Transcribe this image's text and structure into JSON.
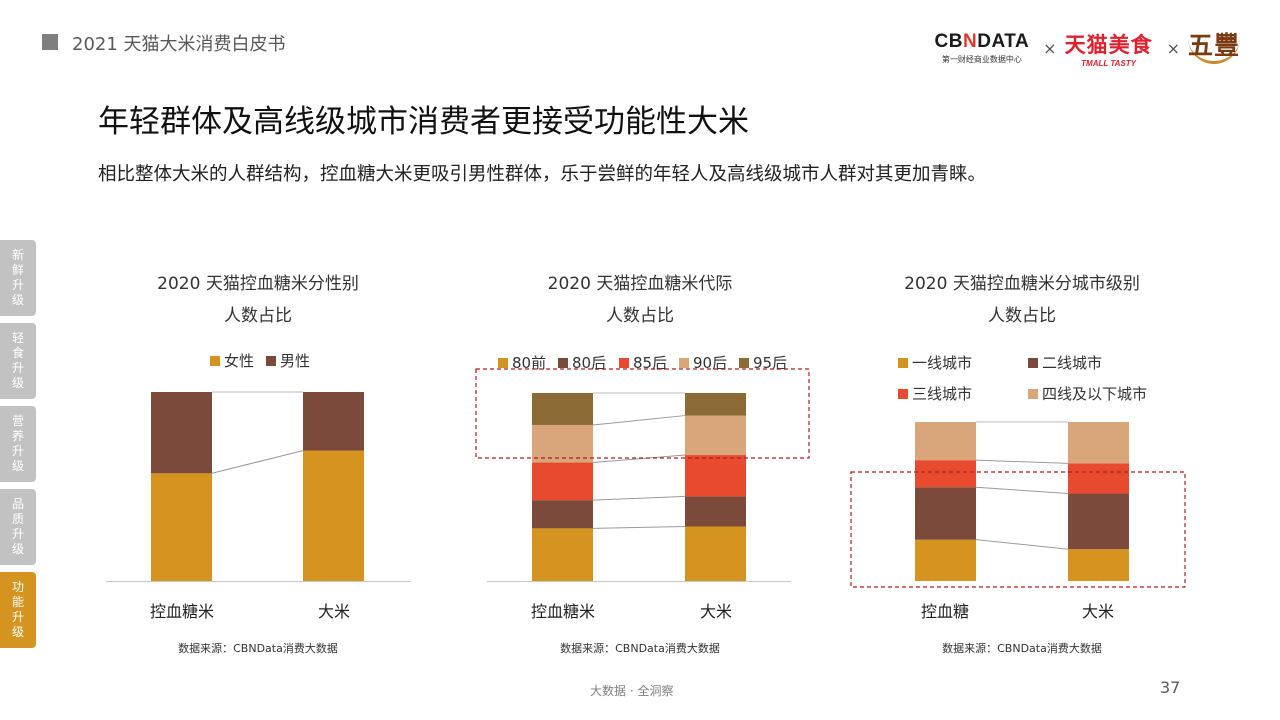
{
  "doc_title": "2021 天猫大米消费白皮书",
  "logos": {
    "cbn_prefix": "CB",
    "cbn_x": "N",
    "cbn_suffix": "DATA",
    "cbn_sub": "第一财经商业数据中心",
    "tmall": "天猫美食",
    "tmall_sub": "TMALL TASTY",
    "wufeng": "五豐",
    "times": "×"
  },
  "main_title": "年轻群体及高线级城市消费者更接受功能性大米",
  "subtitle": "相比整体大米的人群结构，控血糖大米更吸引男性群体，乐于尝鲜的年轻人及高线级城市人群对其更加青睐。",
  "side_tabs": [
    "新鲜升级",
    "轻食升级",
    "营养升级",
    "品质升级",
    "功能升级"
  ],
  "source_text": "数据来源：CBNData消费大数据",
  "footer_text": "大数据 · 全洞察",
  "page_number": "37",
  "colors": {
    "gold": "#d4941f",
    "brown": "#7b4a3a",
    "red": "#e84a30",
    "tan": "#d9a57b",
    "olive": "#8b6a35",
    "accent_dash": "#b01f1f"
  },
  "chart_data": [
    {
      "type": "bar",
      "stacked": true,
      "normalized": true,
      "title_line1": "2020 天猫控血糖米分性别",
      "title_line2": "人数占比",
      "categories": [
        "控血糖米",
        "大米"
      ],
      "series": [
        {
          "name": "女性",
          "values": [
            57,
            69
          ]
        },
        {
          "name": "男性",
          "values": [
            43,
            31
          ]
        }
      ],
      "ylim": [
        0,
        100
      ],
      "highlight": null
    },
    {
      "type": "bar",
      "stacked": true,
      "normalized": true,
      "title_line1": "2020 天猫控血糖米代际",
      "title_line2": "人数占比",
      "categories": [
        "控血糖米",
        "大米"
      ],
      "series": [
        {
          "name": "80前",
          "values": [
            28,
            29
          ]
        },
        {
          "name": "80后",
          "values": [
            15,
            16
          ]
        },
        {
          "name": "85后",
          "values": [
            20,
            22
          ]
        },
        {
          "name": "90后",
          "values": [
            20,
            21
          ]
        },
        {
          "name": "95后",
          "values": [
            17,
            12
          ]
        }
      ],
      "ylim": [
        0,
        100
      ],
      "highlight": "95后 + 90后"
    },
    {
      "type": "bar",
      "stacked": true,
      "normalized": true,
      "title_line1": "2020 天猫控血糖米分城市级别",
      "title_line2": "人数占比",
      "categories": [
        "控血糖",
        "大米"
      ],
      "series": [
        {
          "name": "一线城市",
          "values": [
            26,
            20
          ]
        },
        {
          "name": "二线城市",
          "values": [
            33,
            35
          ]
        },
        {
          "name": "三线城市",
          "values": [
            17,
            19
          ]
        },
        {
          "name": "四线及以下城市",
          "values": [
            24,
            26
          ]
        }
      ],
      "ylim": [
        0,
        100
      ],
      "highlight": "一线城市 + 二线城市"
    }
  ]
}
